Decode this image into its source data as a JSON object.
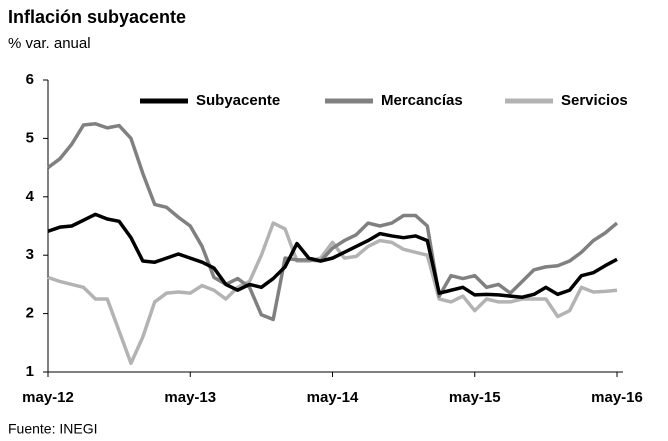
{
  "chart_data": {
    "type": "line",
    "title": "Inflación subyacente",
    "subtitle": "% var. anual",
    "source": "Fuente: INEGI",
    "categories": [
      "may-12",
      null,
      null,
      null,
      null,
      null,
      null,
      null,
      null,
      null,
      null,
      null,
      "may-13",
      null,
      null,
      null,
      null,
      null,
      null,
      null,
      null,
      null,
      null,
      null,
      "may-14",
      null,
      null,
      null,
      null,
      null,
      null,
      null,
      null,
      null,
      null,
      null,
      "may-15",
      null,
      null,
      null,
      null,
      null,
      null,
      null,
      null,
      null,
      null,
      null,
      "may-16"
    ],
    "series": [
      {
        "name": "Subyacente",
        "color": "#000000",
        "values": [
          3.41,
          3.48,
          3.5,
          3.6,
          3.7,
          3.62,
          3.58,
          3.3,
          2.9,
          2.88,
          2.95,
          3.02,
          2.95,
          2.88,
          2.78,
          2.5,
          2.4,
          2.5,
          2.45,
          2.6,
          2.8,
          3.2,
          2.95,
          2.9,
          2.95,
          3.05,
          3.15,
          3.25,
          3.37,
          3.33,
          3.3,
          3.33,
          3.25,
          2.35,
          2.4,
          2.45,
          2.32,
          2.33,
          2.32,
          2.3,
          2.28,
          2.33,
          2.45,
          2.33,
          2.4,
          2.65,
          2.7,
          2.82,
          2.93
        ]
      },
      {
        "name": "Mercancías",
        "color": "#808080",
        "values": [
          4.5,
          4.65,
          4.9,
          5.23,
          5.25,
          5.18,
          5.22,
          5.0,
          4.4,
          3.87,
          3.82,
          3.65,
          3.5,
          3.15,
          2.62,
          2.5,
          2.6,
          2.45,
          1.98,
          1.9,
          2.95,
          2.92,
          2.92,
          2.9,
          3.12,
          3.25,
          3.35,
          3.55,
          3.5,
          3.55,
          3.68,
          3.68,
          3.5,
          2.3,
          2.65,
          2.6,
          2.65,
          2.45,
          2.5,
          2.35,
          2.55,
          2.75,
          2.8,
          2.82,
          2.9,
          3.05,
          3.25,
          3.38,
          3.55
        ]
      },
      {
        "name": "Servicios",
        "color": "#b3b3b3",
        "values": [
          2.62,
          2.55,
          2.5,
          2.45,
          2.25,
          2.25,
          1.7,
          1.15,
          1.6,
          2.2,
          2.35,
          2.37,
          2.35,
          2.48,
          2.4,
          2.25,
          2.45,
          2.55,
          3.0,
          3.55,
          3.45,
          2.9,
          2.9,
          2.95,
          3.22,
          2.95,
          2.98,
          3.15,
          3.25,
          3.22,
          3.1,
          3.05,
          3.0,
          2.25,
          2.2,
          2.3,
          2.05,
          2.25,
          2.2,
          2.2,
          2.25,
          2.25,
          2.25,
          1.95,
          2.05,
          2.45,
          2.37,
          2.38,
          2.4
        ]
      }
    ],
    "ylim": [
      1,
      6
    ],
    "yticks": [
      1,
      2,
      3,
      4,
      5,
      6
    ],
    "grid": false,
    "legend": "top"
  }
}
